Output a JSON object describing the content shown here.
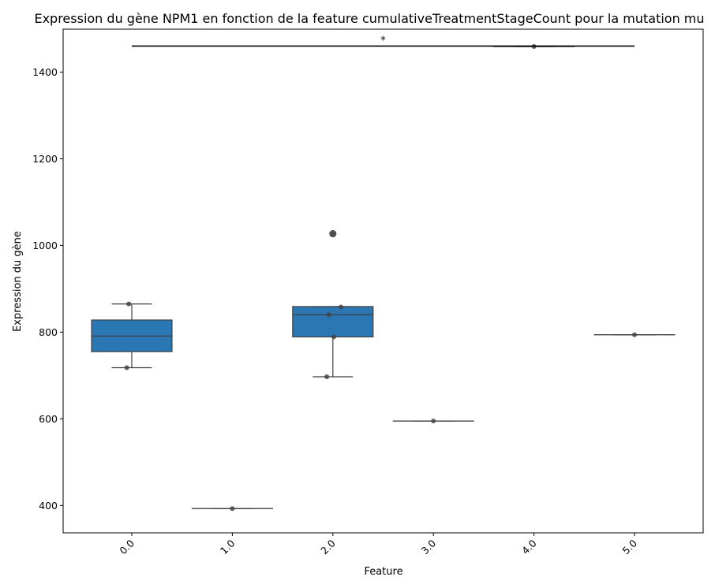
{
  "chart_data": {
    "type": "box",
    "title": "Expression du gène NPM1 en fonction de la feature cumulativeTreatmentStageCount pour la mutation mu",
    "xlabel": "Feature",
    "ylabel": "Expression du gène",
    "categories": [
      "0.0",
      "1.0",
      "2.0",
      "3.0",
      "4.0",
      "5.0"
    ],
    "ylim": [
      337,
      1499
    ],
    "yticks": [
      400,
      600,
      800,
      1000,
      1200,
      1400
    ],
    "grid": false,
    "box_color": "#2a77b4",
    "boxes": [
      {
        "category": "0.0",
        "q1": 755,
        "median": 791,
        "q3": 828,
        "whisker_low": 718,
        "whisker_high": 865
      },
      {
        "category": "1.0",
        "q1": 393,
        "median": 393,
        "q3": 393,
        "whisker_low": 393,
        "whisker_high": 393
      },
      {
        "category": "2.0",
        "q1": 789,
        "median": 840,
        "q3": 859,
        "whisker_low": 697,
        "whisker_high": 859,
        "outliers": [
          1027
        ]
      },
      {
        "category": "3.0",
        "q1": 595,
        "median": 595,
        "q3": 595,
        "whisker_low": 595,
        "whisker_high": 595
      },
      {
        "category": "4.0",
        "q1": 1459,
        "median": 1459,
        "q3": 1459,
        "whisker_low": 1459,
        "whisker_high": 1459
      },
      {
        "category": "5.0",
        "q1": 794,
        "median": 794,
        "q3": 794,
        "whisker_low": 794,
        "whisker_high": 794
      }
    ],
    "points": [
      {
        "category": "0.0",
        "y": 865,
        "jitter": -0.03
      },
      {
        "category": "0.0",
        "y": 718,
        "jitter": -0.05
      },
      {
        "category": "1.0",
        "y": 393,
        "jitter": 0.0
      },
      {
        "category": "2.0",
        "y": 858,
        "jitter": 0.08
      },
      {
        "category": "2.0",
        "y": 840,
        "jitter": -0.04
      },
      {
        "category": "2.0",
        "y": 789,
        "jitter": 0.01
      },
      {
        "category": "2.0",
        "y": 697,
        "jitter": -0.06
      },
      {
        "category": "2.0",
        "y": 1027,
        "jitter": 0.0
      },
      {
        "category": "3.0",
        "y": 595,
        "jitter": 0.0
      },
      {
        "category": "4.0",
        "y": 1459,
        "jitter": 0.0
      },
      {
        "category": "5.0",
        "y": 794,
        "jitter": 0.0
      }
    ],
    "significance": {
      "from": "0.0",
      "to": "5.0",
      "y": 1460,
      "label": "*"
    }
  }
}
